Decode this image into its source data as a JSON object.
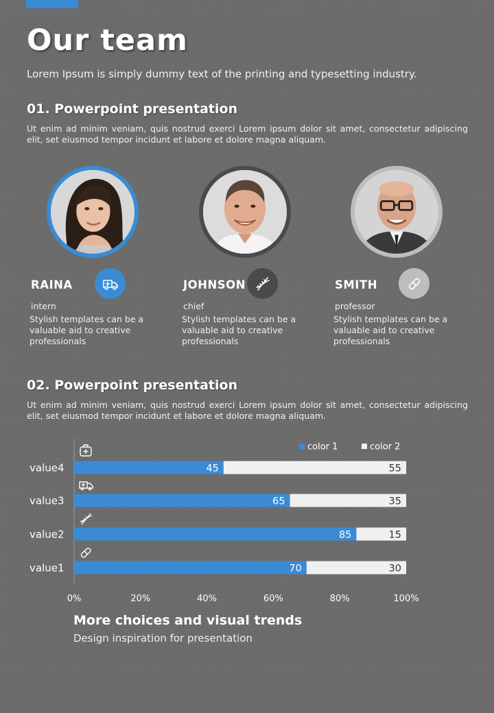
{
  "header": {
    "title": "Our team",
    "subtitle": "Lorem Ipsum is simply dummy text of the printing and typesetting industry."
  },
  "section1": {
    "title": "01. Powerpoint presentation",
    "body": "Ut enim ad minim veniam, quis nostrud exerci  Lorem ipsum dolor sit amet, consectetur adipiscing elit, set eiusmod tempor incidunt et labore et dolore magna aliquam."
  },
  "team": [
    {
      "name": "RAINA",
      "role": "intern",
      "description": "Stylish templates can be a valuable aid to  creative professionals",
      "icon": "ambulance-icon",
      "ring_color": "#3a8bd4",
      "icon_bg": "#3a8bd4"
    },
    {
      "name": "JOHNSON",
      "role": "chief",
      "description": "Stylish templates can be a valuable aid to  creative professionals",
      "icon": "dna-icon",
      "ring_color": "#4a4a4a",
      "icon_bg": "#4a4a4a"
    },
    {
      "name": "SMITH",
      "role": "professor",
      "description": "Stylish templates can be a valuable aid to  creative professionals",
      "icon": "pill-icon",
      "ring_color": "#bdbdbd",
      "icon_bg": "#bdbdbd"
    }
  ],
  "section2": {
    "title": "02. Powerpoint presentation",
    "body": "Ut enim ad minim veniam, quis nostrud exerci  Lorem ipsum dolor sit amet, consectetur adipiscing elit, set eiusmod tempor incidunt et labore et dolore magna aliquam."
  },
  "chart_data": {
    "type": "bar",
    "orientation": "horizontal",
    "stacked": "percent",
    "categories": [
      "value4",
      "value3",
      "value2",
      "value1"
    ],
    "category_icons": [
      "medical-bag-icon",
      "ambulance-icon",
      "dna-icon",
      "pill-icon"
    ],
    "series": [
      {
        "name": "color 1",
        "values": [
          45,
          65,
          85,
          70
        ],
        "color": "#3a8bd4"
      },
      {
        "name": "color 2",
        "values": [
          55,
          35,
          15,
          30
        ],
        "color": "#f0f0f0"
      }
    ],
    "x_ticks": [
      "0%",
      "20%",
      "40%",
      "60%",
      "80%",
      "100%"
    ],
    "xlim": [
      0,
      100
    ],
    "legend_position": "top-right",
    "grid": false
  },
  "footer": {
    "title": "More choices and visual trends",
    "subtitle": "Design inspiration for presentation"
  }
}
